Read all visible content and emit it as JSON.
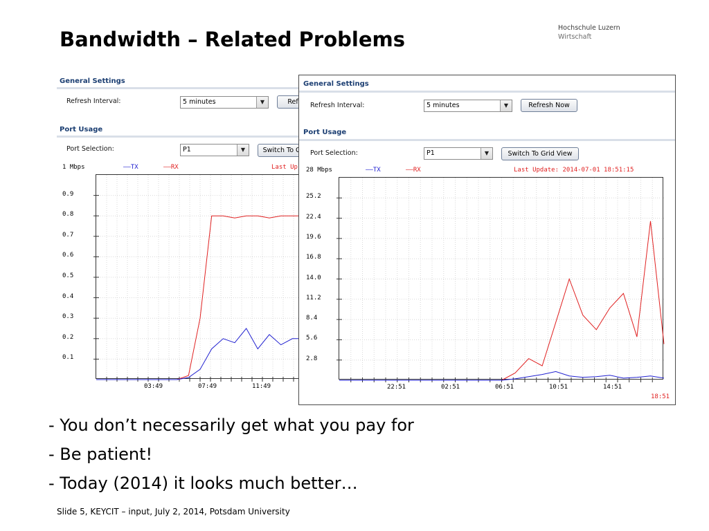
{
  "slide": {
    "title": "Bandwidth – Related Problems",
    "logo": {
      "line1": "Hochschule Luzern",
      "line2": "Wirtschaft"
    },
    "bullets": [
      "- You don’t necessarily get what you pay for",
      "- Be patient!",
      "- Today (2014) it looks much better…"
    ],
    "footer": "Slide   5, KEYCIT – input, July 2, 2014, Potsdam University"
  },
  "screenshot_back": {
    "general_settings": "General Settings",
    "refresh_label": "Refresh Interval:",
    "refresh_value": "5 minutes",
    "refresh_button": "Refr",
    "port_usage": "Port Usage",
    "port_label": "Port Selection:",
    "port_value": "P1",
    "switch_button": "Switch To G",
    "unit": "1 Mbps",
    "legend_tx": "——TX",
    "legend_rx": "——RX",
    "last_update": "Last Up",
    "y_ticks": [
      "0.9",
      "0.8",
      "0.7",
      "0.6",
      "0.5",
      "0.4",
      "0.3",
      "0.2",
      "0.1"
    ],
    "x_ticks": [
      "03:49",
      "07:49",
      "11:49"
    ]
  },
  "screenshot_front": {
    "general_settings": "General Settings",
    "refresh_label": "Refresh Interval:",
    "refresh_value": "5 minutes",
    "refresh_button": "Refresh Now",
    "port_usage": "Port Usage",
    "port_label": "Port Selection:",
    "port_value": "P1",
    "switch_button": "Switch To Grid View",
    "unit": "28 Mbps",
    "legend_tx": "——TX",
    "legend_rx": "——RX",
    "last_update": "Last Update: 2014-07-01 18:51:15",
    "y_ticks": [
      "25.2",
      "22.4",
      "19.6",
      "16.8",
      "14.0",
      "11.2",
      "8.4",
      "5.6",
      "2.8"
    ],
    "x_ticks": [
      "22:51",
      "02:51",
      "06:51",
      "10:51",
      "14:51"
    ],
    "corner_time": "18:51"
  },
  "colors": {
    "tx": "#2020d0",
    "rx": "#e02020",
    "section_title": "#1b3e72"
  },
  "chart_data": [
    {
      "type": "line",
      "unit": "Mbps",
      "ylim": [
        0,
        1
      ],
      "x_tick_labels": [
        "03:49",
        "07:49",
        "11:49"
      ],
      "series": [
        {
          "name": "RX",
          "x": [
            0,
            1,
            2,
            3,
            4,
            5,
            6,
            7,
            8,
            9,
            10,
            11,
            12,
            13,
            14,
            15,
            16,
            17,
            18
          ],
          "values": [
            0,
            0,
            0,
            0,
            0,
            0,
            0,
            0,
            0.02,
            0.3,
            0.8,
            0.8,
            0.79,
            0.8,
            0.8,
            0.79,
            0.8,
            0.8,
            0.8
          ]
        },
        {
          "name": "TX",
          "x": [
            0,
            1,
            2,
            3,
            4,
            5,
            6,
            7,
            8,
            9,
            10,
            11,
            12,
            13,
            14,
            15,
            16,
            17,
            18
          ],
          "values": [
            0,
            0,
            0,
            0,
            0,
            0,
            0,
            0,
            0.01,
            0.05,
            0.15,
            0.2,
            0.18,
            0.25,
            0.15,
            0.22,
            0.17,
            0.2,
            0.2
          ]
        }
      ]
    },
    {
      "type": "line",
      "unit": "Mbps",
      "ylim": [
        0,
        28
      ],
      "x_tick_labels": [
        "22:51",
        "02:51",
        "06:51",
        "10:51",
        "14:51"
      ],
      "series": [
        {
          "name": "RX",
          "x": [
            0,
            1,
            2,
            3,
            4,
            5,
            6,
            7,
            8,
            9,
            10,
            11,
            12,
            13,
            14,
            15,
            16,
            17,
            18,
            19,
            20,
            21,
            22,
            23,
            24
          ],
          "values": [
            0,
            0,
            0,
            0,
            0,
            0,
            0,
            0,
            0,
            0,
            0,
            0,
            0,
            1,
            3,
            2,
            8,
            14,
            9,
            7,
            10,
            12,
            6,
            22,
            5
          ]
        },
        {
          "name": "TX",
          "x": [
            0,
            1,
            2,
            3,
            4,
            5,
            6,
            7,
            8,
            9,
            10,
            11,
            12,
            13,
            14,
            15,
            16,
            17,
            18,
            19,
            20,
            21,
            22,
            23,
            24
          ],
          "values": [
            0,
            0,
            0,
            0,
            0,
            0,
            0,
            0,
            0,
            0,
            0,
            0,
            0,
            0.2,
            0.5,
            0.8,
            1.2,
            0.6,
            0.4,
            0.5,
            0.7,
            0.3,
            0.4,
            0.6,
            0.3
          ]
        }
      ]
    }
  ]
}
